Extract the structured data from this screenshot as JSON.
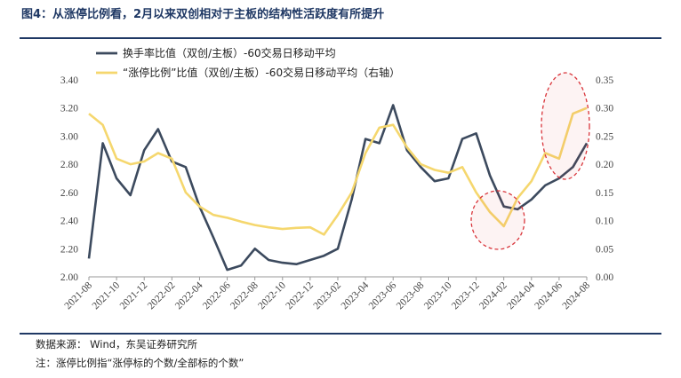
{
  "figure": {
    "title": "图4：从涨停比例看，2月以来双创相对于主板的结构性活跃度有所提升",
    "source": "数据来源： Wind，东吴证券研究所",
    "note": "注：涨停比例指“涨停标的个数/全部标的个数”"
  },
  "colors": {
    "turnover": "#3c4a5e",
    "limitup": "#f5d76e",
    "rule": "#1f3864",
    "ellipse": "#d9343a"
  },
  "chart_data": {
    "type": "line",
    "title": "",
    "x": [
      "2021-08",
      "2021-09",
      "2021-10",
      "2021-11",
      "2021-12",
      "2022-01",
      "2022-02",
      "2022-03",
      "2022-04",
      "2022-05",
      "2022-06",
      "2022-07",
      "2022-08",
      "2022-09",
      "2022-10",
      "2022-11",
      "2022-12",
      "2023-01",
      "2023-02",
      "2023-03",
      "2023-04",
      "2023-05",
      "2023-06",
      "2023-07",
      "2023-08",
      "2023-09",
      "2023-10",
      "2023-11",
      "2023-12",
      "2024-01",
      "2024-02",
      "2024-03",
      "2024-04",
      "2024-05",
      "2024-06",
      "2024-07",
      "2024-08"
    ],
    "x_tick_labels": [
      "2021-08",
      "2021-10",
      "2021-12",
      "2022-02",
      "2022-04",
      "2022-06",
      "2022-08",
      "2022-10",
      "2022-12",
      "2023-02",
      "2023-04",
      "2023-06",
      "2023-08",
      "2023-10",
      "2023-12",
      "2024-02",
      "2024-04",
      "2024-06",
      "2024-08"
    ],
    "y_left": {
      "range": [
        2.0,
        3.4
      ],
      "ticks": [
        "2.00",
        "2.20",
        "2.40",
        "2.60",
        "2.80",
        "3.00",
        "3.20",
        "3.40"
      ]
    },
    "y_right": {
      "range": [
        0.0,
        0.35
      ],
      "ticks": [
        "0.00",
        "0.05",
        "0.10",
        "0.15",
        "0.20",
        "0.25",
        "0.30",
        "0.35"
      ]
    },
    "legend_position": "top-center",
    "grid": false,
    "series": [
      {
        "name": "换手率比值（双创/主板）-60交易日移动平均",
        "axis": "left",
        "color": "#3c4a5e",
        "values": [
          2.13,
          2.95,
          2.7,
          2.58,
          2.9,
          3.05,
          2.82,
          2.78,
          2.5,
          2.28,
          2.05,
          2.08,
          2.2,
          2.12,
          2.1,
          2.09,
          2.12,
          2.15,
          2.2,
          2.55,
          2.98,
          2.95,
          3.22,
          2.9,
          2.78,
          2.68,
          2.7,
          2.98,
          3.02,
          2.72,
          2.5,
          2.48,
          2.55,
          2.65,
          2.7,
          2.78,
          2.95
        ]
      },
      {
        "name": "“涨停比例”比值（双创/主板）-60交易日移动平均（右轴）",
        "axis": "right",
        "color": "#f5d76e",
        "values": [
          0.29,
          0.27,
          0.21,
          0.2,
          0.205,
          0.22,
          0.21,
          0.15,
          0.125,
          0.11,
          0.105,
          0.098,
          0.092,
          0.088,
          0.085,
          0.087,
          0.088,
          0.075,
          0.11,
          0.15,
          0.22,
          0.265,
          0.27,
          0.23,
          0.2,
          0.19,
          0.185,
          0.195,
          0.15,
          0.115,
          0.09,
          0.14,
          0.17,
          0.22,
          0.21,
          0.29,
          0.3
        ]
      }
    ]
  }
}
